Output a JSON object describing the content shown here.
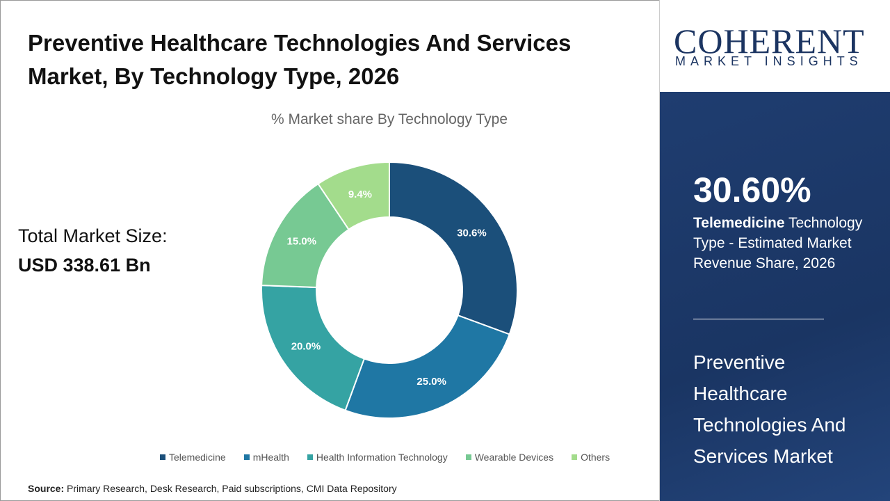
{
  "title": "Preventive Healthcare Technologies And Services Market, By Technology Type, 2026",
  "total": {
    "label": "Total Market Size:",
    "value": "USD 338.61 Bn"
  },
  "source": {
    "label": "Source:",
    "text": " Primary Research, Desk Research, Paid subscriptions, CMI Data Repository"
  },
  "logo": {
    "line1": "COHERENT",
    "line2": "MARKET INSIGHTS"
  },
  "highlight": {
    "value": "30.60%",
    "bold": "Telemedicine",
    "rest": " Technology Type - Estimated Market Revenue Share, 2026",
    "market": "Preventive Healthcare Technologies And Services Market"
  },
  "chart_data": {
    "type": "pie",
    "donut": true,
    "title": "% Market share By Technology Type",
    "legend_position": "bottom",
    "categories": [
      "Telemedicine",
      "mHealth",
      "Health Information Technology",
      "Wearable Devices",
      "Others"
    ],
    "values": [
      30.6,
      25.0,
      20.0,
      15.0,
      9.4
    ],
    "labels": [
      "30.6%",
      "25.0%",
      "20.0%",
      "15.0%",
      "9.4%"
    ],
    "colors": [
      "#1b4f7a",
      "#1f77a4",
      "#35a3a3",
      "#77c993",
      "#a3dc8c"
    ]
  }
}
